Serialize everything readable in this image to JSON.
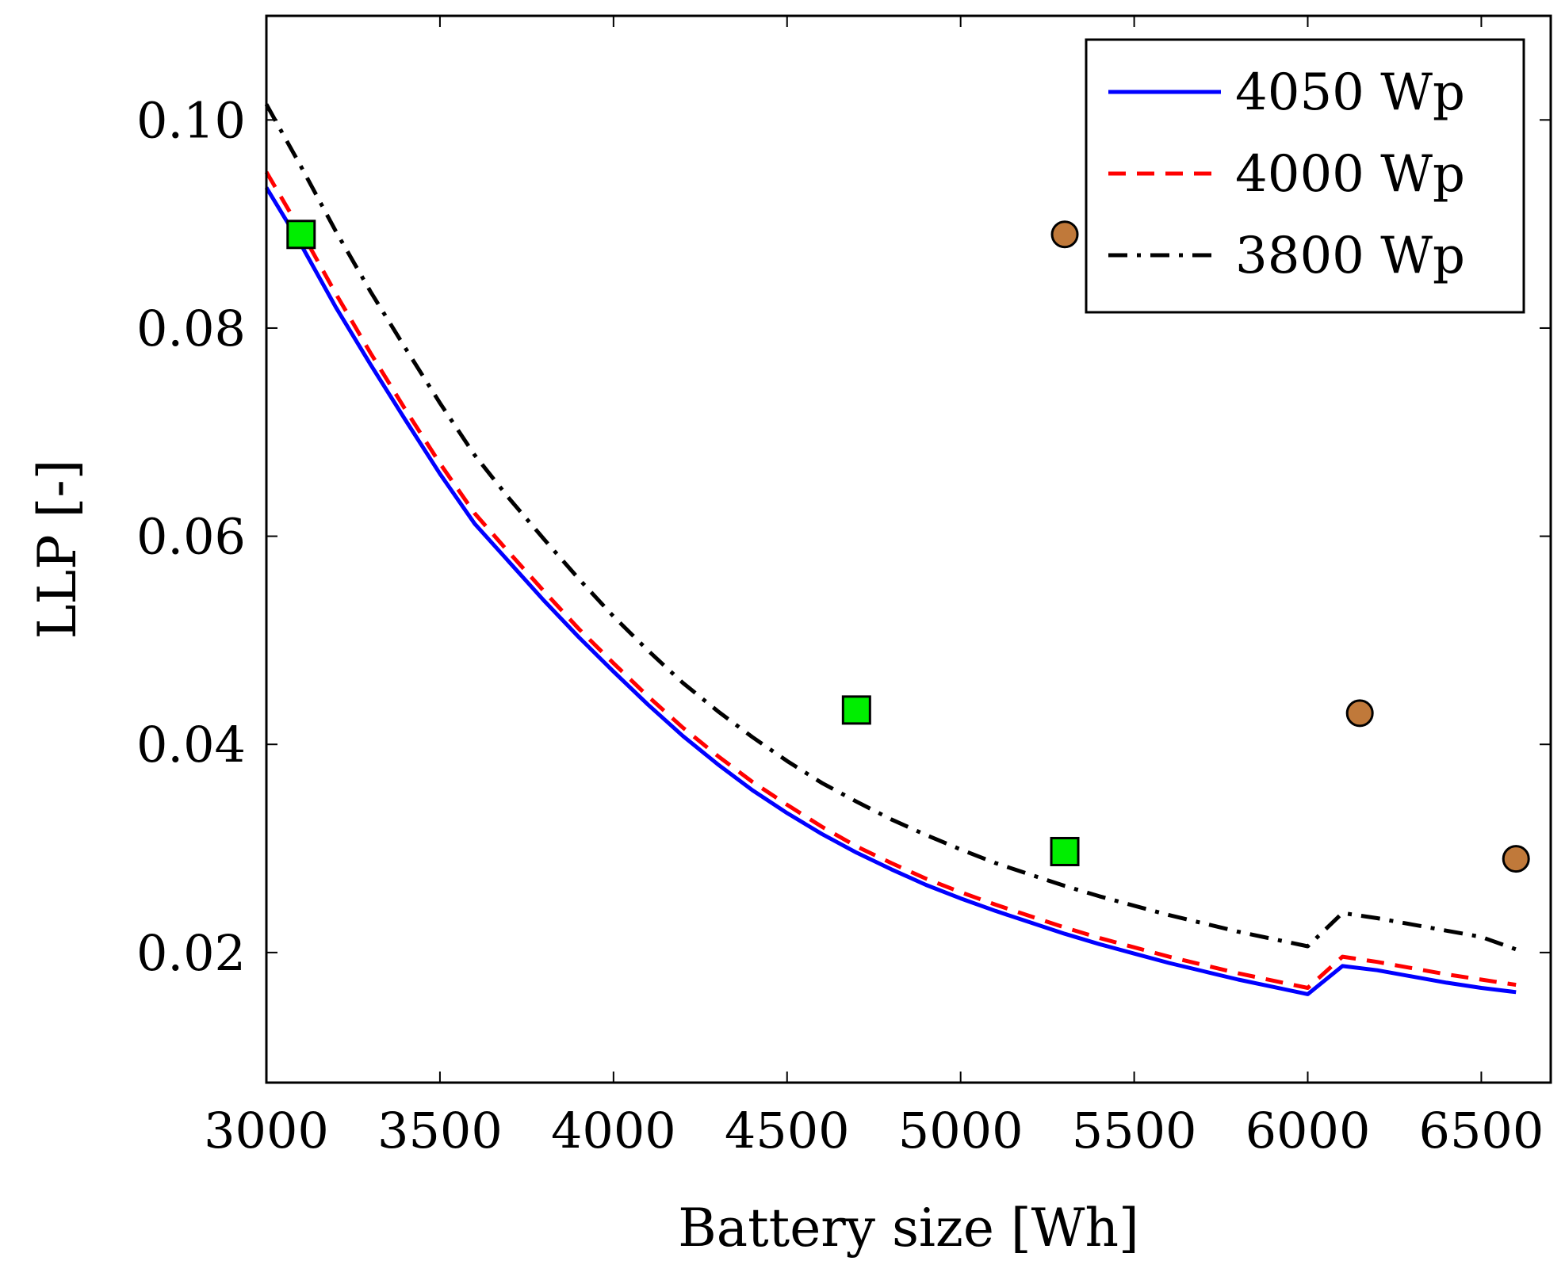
{
  "chart_data": {
    "type": "line",
    "title": "",
    "xlabel": "Battery size [Wh]",
    "ylabel": "LLP [-]",
    "xlim": [
      3000,
      6700
    ],
    "ylim": [
      0.0075,
      0.11
    ],
    "x_ticks": [
      3000,
      3500,
      4000,
      4500,
      5000,
      5500,
      6000,
      6500
    ],
    "x_tick_labels": [
      "3000",
      "3500",
      "4000",
      "4500",
      "5000",
      "5500",
      "6000",
      "6500"
    ],
    "y_ticks": [
      0.02,
      0.04,
      0.06,
      0.08,
      0.1
    ],
    "y_tick_labels": [
      "0.02",
      "0.04",
      "0.06",
      "0.08",
      "0.10"
    ],
    "grid": false,
    "legend_position": "top-right",
    "series": [
      {
        "name": "4050 Wp",
        "style": "solid",
        "color": "#0000ff",
        "x": [
          3000,
          3100,
          3200,
          3300,
          3400,
          3500,
          3600,
          3700,
          3800,
          3900,
          4000,
          4100,
          4200,
          4300,
          4400,
          4500,
          4600,
          4700,
          4800,
          4900,
          5000,
          5100,
          5200,
          5300,
          5400,
          5500,
          5600,
          5700,
          5800,
          5900,
          6000,
          6100,
          6200,
          6300,
          6400,
          6500,
          6600
        ],
        "y": [
          0.0935,
          0.088,
          0.082,
          0.0765,
          0.0712,
          0.066,
          0.0612,
          0.0575,
          0.0538,
          0.0503,
          0.047,
          0.0438,
          0.0408,
          0.0381,
          0.0356,
          0.0334,
          0.0314,
          0.0296,
          0.028,
          0.0265,
          0.0252,
          0.024,
          0.0229,
          0.0218,
          0.0208,
          0.0199,
          0.019,
          0.0182,
          0.0174,
          0.0167,
          0.016,
          0.0187,
          0.0183,
          0.0177,
          0.0171,
          0.0166,
          0.0162
        ]
      },
      {
        "name": "4000 Wp",
        "style": "dashed",
        "color": "#ff0000",
        "x": [
          3000,
          3100,
          3200,
          3300,
          3400,
          3500,
          3600,
          3700,
          3800,
          3900,
          4000,
          4100,
          4200,
          4300,
          4400,
          4500,
          4600,
          4700,
          4800,
          4900,
          5000,
          5100,
          5200,
          5300,
          5400,
          5500,
          5600,
          5700,
          5800,
          5900,
          6000,
          6100,
          6200,
          6300,
          6400,
          6500,
          6600
        ],
        "y": [
          0.095,
          0.0893,
          0.0833,
          0.0776,
          0.0722,
          0.067,
          0.0622,
          0.0584,
          0.0547,
          0.0511,
          0.0478,
          0.0446,
          0.0416,
          0.0389,
          0.0364,
          0.0342,
          0.0321,
          0.0302,
          0.0286,
          0.0271,
          0.0258,
          0.0246,
          0.0235,
          0.0224,
          0.0214,
          0.0205,
          0.0196,
          0.0188,
          0.018,
          0.0173,
          0.0166,
          0.0196,
          0.0191,
          0.0185,
          0.0179,
          0.0174,
          0.0169
        ]
      },
      {
        "name": "3800 Wp",
        "style": "dash-dot",
        "color": "#000000",
        "x": [
          3000,
          3100,
          3200,
          3300,
          3400,
          3500,
          3600,
          3700,
          3800,
          3900,
          4000,
          4100,
          4200,
          4300,
          4400,
          4500,
          4600,
          4700,
          4800,
          4900,
          5000,
          5100,
          5200,
          5300,
          5400,
          5500,
          5600,
          5700,
          5800,
          5900,
          6000,
          6100,
          6200,
          6300,
          6400,
          6500,
          6600
        ],
        "y": [
          0.1015,
          0.0955,
          0.0893,
          0.0835,
          0.0781,
          0.0728,
          0.0678,
          0.0636,
          0.0597,
          0.0559,
          0.0523,
          0.049,
          0.0459,
          0.0432,
          0.0407,
          0.0384,
          0.0363,
          0.0345,
          0.0328,
          0.0313,
          0.0299,
          0.0286,
          0.0275,
          0.0264,
          0.0254,
          0.0245,
          0.0236,
          0.0228,
          0.022,
          0.0213,
          0.0206,
          0.0238,
          0.0233,
          0.0227,
          0.0221,
          0.0215,
          0.0203
        ]
      }
    ],
    "markers": [
      {
        "name": "green-squares",
        "shape": "square",
        "color": "#00ee00",
        "points": [
          [
            3100,
            0.089
          ],
          [
            4700,
            0.0433
          ],
          [
            5300,
            0.0297
          ]
        ]
      },
      {
        "name": "brown-circles",
        "shape": "circle",
        "color": "#c0793a",
        "points": [
          [
            5300,
            0.089
          ],
          [
            6150,
            0.043
          ],
          [
            6600,
            0.029
          ]
        ]
      }
    ]
  }
}
